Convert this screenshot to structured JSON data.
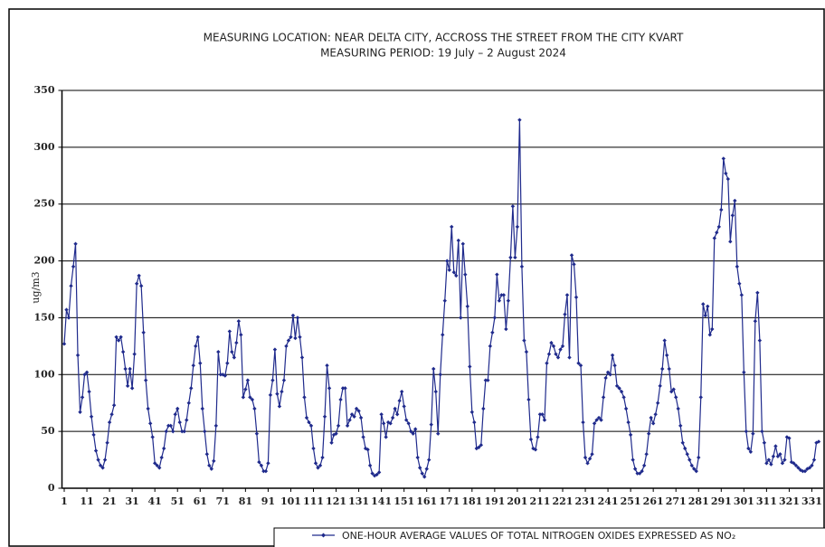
{
  "chart_data": {
    "type": "line",
    "title": "MEASURING LOCATION: NEAR DELTA CITY, ACCROSS THE STREET FROM THE CITY KVART",
    "subtitle": "MEASURING PERIOD:  19 July – 2 August 2024",
    "y_label": "ug/m3",
    "x": [
      1,
      2,
      3,
      4,
      5,
      6,
      7,
      8,
      9,
      10,
      11,
      12,
      13,
      14,
      15,
      16,
      17,
      18,
      19,
      20,
      21,
      22,
      23,
      24,
      25,
      26,
      27,
      28,
      29,
      30,
      31,
      32,
      33,
      34,
      35,
      36,
      37,
      38,
      39,
      40,
      41,
      42,
      43,
      44,
      45,
      46,
      47,
      48,
      49,
      50,
      51,
      52,
      53,
      54,
      55,
      56,
      57,
      58,
      59,
      60,
      61,
      62,
      63,
      64,
      65,
      66,
      67,
      68,
      69,
      70,
      71,
      72,
      73,
      74,
      75,
      76,
      77,
      78,
      79,
      80,
      81,
      82,
      83,
      84,
      85,
      86,
      87,
      88,
      89,
      90,
      91,
      92,
      93,
      94,
      95,
      96,
      97,
      98,
      99,
      100,
      101,
      102,
      103,
      104,
      105,
      106,
      107,
      108,
      109,
      110,
      111,
      112,
      113,
      114,
      115,
      116,
      117,
      118,
      119,
      120,
      121,
      122,
      123,
      124,
      125,
      126,
      127,
      128,
      129,
      130,
      131,
      132,
      133,
      134,
      135,
      136,
      137,
      138,
      139,
      140,
      141,
      142,
      143,
      144,
      145,
      146,
      147,
      148,
      149,
      150,
      151,
      152,
      153,
      154,
      155,
      156,
      157,
      158,
      159,
      160,
      161,
      162,
      163,
      164,
      165,
      166,
      167,
      168,
      169,
      170,
      171,
      172,
      173,
      174,
      175,
      176,
      177,
      178,
      179,
      180,
      181,
      182,
      183,
      184,
      185,
      186,
      187,
      188,
      189,
      190,
      191,
      192,
      193,
      194,
      195,
      196,
      197,
      198,
      199,
      200,
      201,
      202,
      203,
      204,
      205,
      206,
      207,
      208,
      209,
      210,
      211,
      212,
      213,
      214,
      215,
      216,
      217,
      218,
      219,
      220,
      221,
      222,
      223,
      224,
      225,
      226,
      227,
      228,
      229,
      230,
      231,
      232,
      233,
      234,
      235,
      236,
      237,
      238,
      239,
      240,
      241,
      242,
      243,
      244,
      245,
      246,
      247,
      248,
      249,
      250,
      251,
      252,
      253,
      254,
      255,
      256,
      257,
      258,
      259,
      260,
      261,
      262,
      263,
      264,
      265,
      266,
      267,
      268,
      269,
      270,
      271,
      272,
      273,
      274,
      275,
      276,
      277,
      278,
      279,
      280,
      281,
      282,
      283,
      284,
      285,
      286,
      287,
      288,
      289,
      290,
      291,
      292,
      293,
      294,
      295,
      296,
      297,
      298,
      299,
      300,
      301,
      302,
      303,
      304,
      305,
      306,
      307,
      308,
      309,
      310,
      311,
      312,
      313,
      314,
      315,
      316,
      317,
      318,
      319,
      320,
      321,
      322,
      323,
      324,
      325,
      326,
      327,
      328,
      329,
      330,
      331,
      332,
      333,
      334
    ],
    "series": [
      {
        "name": "ONE-HOUR AVERAGE VALUES OF TOTAL NITROGEN OXIDES EXPRESSED AS NO₂",
        "color": "#1f2a8c",
        "values": [
          127,
          157,
          150,
          178,
          195,
          215,
          117,
          67,
          80,
          100,
          102,
          85,
          63,
          47,
          33,
          25,
          20,
          18,
          25,
          40,
          58,
          65,
          73,
          133,
          130,
          133,
          120,
          105,
          90,
          105,
          88,
          118,
          180,
          187,
          178,
          137,
          95,
          70,
          57,
          45,
          22,
          20,
          18,
          27,
          35,
          50,
          55,
          55,
          50,
          65,
          70,
          58,
          50,
          50,
          60,
          75,
          88,
          108,
          125,
          133,
          110,
          70,
          50,
          30,
          20,
          17,
          24,
          55,
          120,
          100,
          100,
          99,
          110,
          138,
          120,
          115,
          128,
          147,
          135,
          80,
          87,
          95,
          80,
          78,
          70,
          48,
          23,
          20,
          15,
          15,
          22,
          82,
          95,
          122,
          83,
          72,
          85,
          95,
          125,
          130,
          133,
          152,
          132,
          150,
          133,
          115,
          80,
          62,
          58,
          55,
          35,
          22,
          18,
          20,
          27,
          63,
          108,
          88,
          40,
          47,
          48,
          55,
          78,
          88,
          88,
          55,
          60,
          65,
          63,
          70,
          68,
          62,
          45,
          35,
          34,
          20,
          13,
          11,
          12,
          14,
          65,
          57,
          45,
          58,
          57,
          62,
          70,
          65,
          77,
          85,
          72,
          60,
          57,
          50,
          48,
          52,
          27,
          18,
          13,
          10,
          17,
          25,
          56,
          105,
          85,
          48,
          100,
          135,
          165,
          200,
          192,
          230,
          190,
          187,
          218,
          150,
          215,
          188,
          160,
          107,
          67,
          58,
          35,
          36,
          38,
          70,
          95,
          95,
          125,
          137,
          150,
          188,
          165,
          170,
          170,
          140,
          165,
          203,
          248,
          203,
          230,
          324,
          195,
          130,
          120,
          78,
          43,
          35,
          34,
          45,
          65,
          65,
          60,
          110,
          118,
          128,
          125,
          118,
          115,
          122,
          125,
          153,
          170,
          115,
          205,
          197,
          168,
          110,
          108,
          58,
          27,
          22,
          26,
          30,
          57,
          60,
          62,
          60,
          80,
          97,
          102,
          100,
          117,
          108,
          90,
          88,
          85,
          80,
          70,
          58,
          47,
          25,
          17,
          13,
          13,
          15,
          20,
          30,
          48,
          62,
          57,
          65,
          75,
          90,
          105,
          130,
          117,
          105,
          85,
          87,
          80,
          70,
          55,
          40,
          35,
          30,
          25,
          20,
          17,
          15,
          27,
          80,
          162,
          152,
          160,
          135,
          140,
          220,
          225,
          230,
          245,
          290,
          277,
          272,
          217,
          240,
          253,
          195,
          180,
          170,
          102,
          50,
          35,
          32,
          48,
          147,
          172,
          130,
          50,
          40,
          22,
          25,
          21,
          28,
          37,
          28,
          30,
          22,
          25,
          45,
          44,
          23,
          22,
          20,
          18,
          16,
          15,
          15,
          17,
          18,
          20,
          25,
          40,
          41
        ]
      }
    ],
    "xlim": [
      0,
      336
    ],
    "xticks": [
      1,
      11,
      21,
      31,
      41,
      51,
      61,
      71,
      81,
      91,
      101,
      111,
      121,
      131,
      141,
      151,
      161,
      171,
      181,
      191,
      201,
      211,
      221,
      231,
      241,
      251,
      261,
      271,
      281,
      291,
      301,
      311,
      321,
      331
    ],
    "ylim": [
      0,
      350
    ],
    "yticks": [
      0,
      50,
      100,
      150,
      200,
      250,
      300,
      350
    ],
    "grid": true
  }
}
